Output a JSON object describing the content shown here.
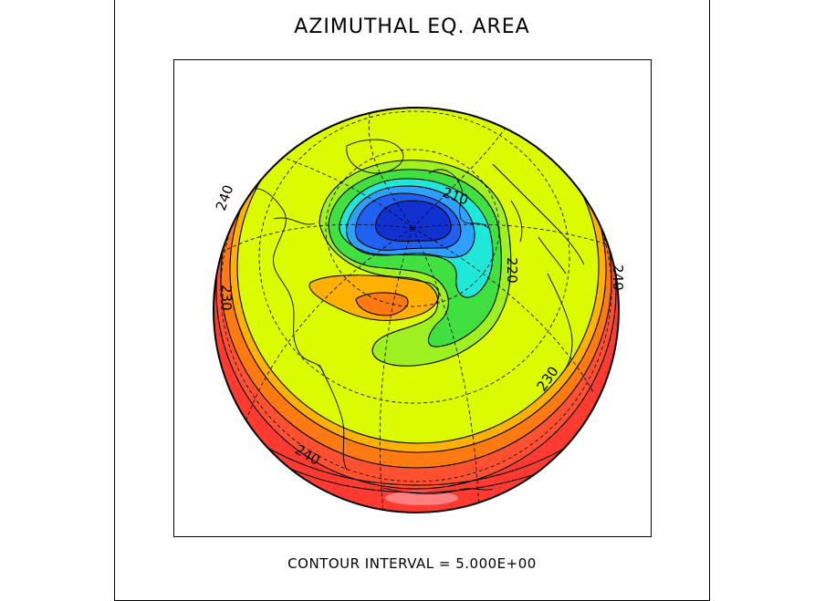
{
  "title": "AZIMUTHAL EQ. AREA",
  "footer": "CONTOUR INTERVAL = 5.000E+00",
  "contour_labels": {
    "l210": "210",
    "l220": "220",
    "l230_left": "230",
    "l230_right": "230",
    "l240_left": "240",
    "l240_right": "240",
    "l240_bottom": "240"
  },
  "colors": {
    "background": "#ffffff",
    "level_200": "#1030d0",
    "level_205": "#2060f0",
    "level_210": "#2ea0ff",
    "level_215": "#20e8d8",
    "level_220": "#40e040",
    "level_225": "#9ef020",
    "level_230": "#dcfa00",
    "level_235": "#ffb000",
    "level_240": "#ff7a10",
    "level_245": "#ff5030",
    "level_250": "#ff3a30",
    "level_255": "#ff8080"
  }
}
